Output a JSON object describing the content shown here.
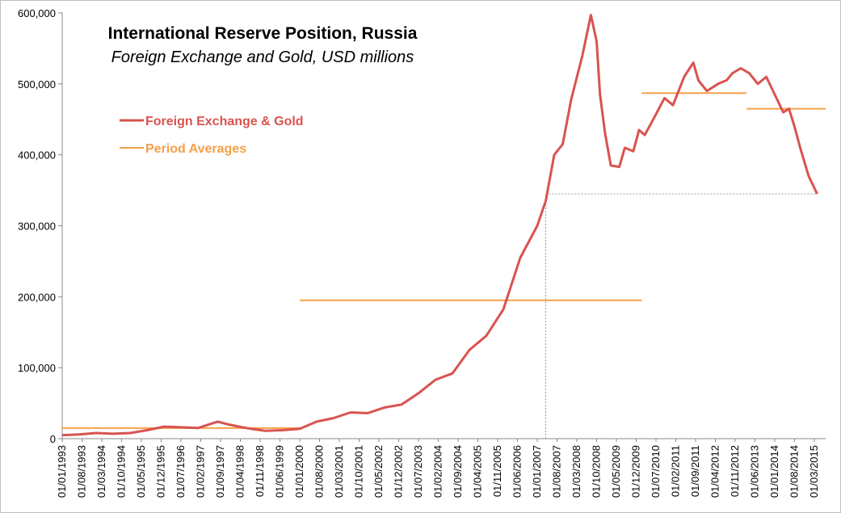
{
  "chart_data": {
    "type": "line",
    "title": "International Reserve Position, Russia",
    "subtitle": "Foreign Exchange and Gold, USD millions",
    "xlabel": "",
    "ylabel": "",
    "ylim": [
      0,
      600000
    ],
    "yticks": [
      "0",
      "100,000",
      "200,000",
      "300,000",
      "400,000",
      "500,000",
      "600,000"
    ],
    "ytick_values": [
      0,
      100000,
      200000,
      300000,
      400000,
      500000,
      600000
    ],
    "x_tick_labels": [
      "01/01/1993",
      "01/08/1993",
      "01/03/1994",
      "01/10/1994",
      "01/05/1995",
      "01/12/1995",
      "01/07/1996",
      "01/02/1997",
      "01/09/1997",
      "01/04/1998",
      "01/11/1998",
      "01/06/1999",
      "01/01/2000",
      "01/08/2000",
      "01/03/2001",
      "01/10/2001",
      "01/05/2002",
      "01/12/2002",
      "01/07/2003",
      "01/02/2004",
      "01/09/2004",
      "01/04/2005",
      "01/11/2005",
      "01/06/2006",
      "01/01/2007",
      "01/08/2007",
      "01/03/2008",
      "01/10/2008",
      "01/05/2009",
      "01/12/2009",
      "01/07/2010",
      "01/02/2011",
      "01/09/2011",
      "01/04/2012",
      "01/11/2012",
      "01/06/2013",
      "01/01/2014",
      "01/08/2014",
      "01/03/2015"
    ],
    "x_start_year": 1993.0,
    "x_end_year": 2015.5,
    "series": [
      {
        "name": "Foreign Exchange & Gold",
        "color": "#d9534f",
        "points": [
          [
            1993.0,
            5000
          ],
          [
            1993.5,
            6000
          ],
          [
            1994.0,
            8000
          ],
          [
            1994.5,
            7000
          ],
          [
            1995.0,
            8000
          ],
          [
            1995.5,
            12000
          ],
          [
            1996.0,
            17000
          ],
          [
            1996.5,
            16000
          ],
          [
            1997.0,
            15000
          ],
          [
            1997.58,
            24000
          ],
          [
            1997.9,
            20000
          ],
          [
            1998.3,
            16000
          ],
          [
            1998.7,
            13000
          ],
          [
            1999.0,
            11000
          ],
          [
            1999.5,
            12000
          ],
          [
            2000.0,
            14000
          ],
          [
            2000.5,
            24000
          ],
          [
            2001.0,
            29000
          ],
          [
            2001.5,
            37000
          ],
          [
            2002.0,
            36000
          ],
          [
            2002.5,
            44000
          ],
          [
            2003.0,
            48000
          ],
          [
            2003.5,
            64000
          ],
          [
            2004.0,
            83000
          ],
          [
            2004.5,
            92000
          ],
          [
            2005.0,
            125000
          ],
          [
            2005.5,
            145000
          ],
          [
            2006.0,
            182000
          ],
          [
            2006.5,
            255000
          ],
          [
            2007.0,
            300000
          ],
          [
            2007.25,
            335000
          ],
          [
            2007.5,
            400000
          ],
          [
            2007.75,
            415000
          ],
          [
            2008.0,
            478000
          ],
          [
            2008.33,
            540000
          ],
          [
            2008.58,
            597000
          ],
          [
            2008.75,
            560000
          ],
          [
            2008.85,
            485000
          ],
          [
            2009.0,
            430000
          ],
          [
            2009.17,
            385000
          ],
          [
            2009.42,
            383000
          ],
          [
            2009.58,
            410000
          ],
          [
            2009.83,
            405000
          ],
          [
            2010.0,
            435000
          ],
          [
            2010.17,
            428000
          ],
          [
            2010.42,
            450000
          ],
          [
            2010.75,
            480000
          ],
          [
            2011.0,
            470000
          ],
          [
            2011.33,
            510000
          ],
          [
            2011.6,
            530000
          ],
          [
            2011.75,
            505000
          ],
          [
            2012.0,
            490000
          ],
          [
            2012.33,
            500000
          ],
          [
            2012.58,
            505000
          ],
          [
            2012.75,
            515000
          ],
          [
            2013.0,
            522000
          ],
          [
            2013.25,
            515000
          ],
          [
            2013.5,
            500000
          ],
          [
            2013.75,
            510000
          ],
          [
            2014.0,
            485000
          ],
          [
            2014.25,
            460000
          ],
          [
            2014.42,
            465000
          ],
          [
            2014.58,
            440000
          ],
          [
            2014.75,
            410000
          ],
          [
            2015.0,
            370000
          ],
          [
            2015.25,
            345000
          ]
        ]
      }
    ],
    "period_averages": {
      "name": "Period Averages",
      "color": "#f5a04a",
      "segments": [
        {
          "x0": 1993.0,
          "x1": 2000.0,
          "y": 15000
        },
        {
          "x0": 2000.0,
          "x1": 2010.08,
          "y": 195000
        },
        {
          "x0": 2010.08,
          "x1": 2013.17,
          "y": 487000
        },
        {
          "x0": 2013.17,
          "x1": 2015.5,
          "y": 465000
        }
      ]
    },
    "reference_lines": {
      "horizontal": {
        "x0": 2007.25,
        "x1": 2015.25,
        "y": 345000
      },
      "vertical": {
        "x": 2007.25,
        "y0": 0,
        "y1": 345000
      }
    },
    "legend": [
      {
        "label": "Foreign Exchange & Gold",
        "color": "#d9534f"
      },
      {
        "label": "Period Averages",
        "color": "#f5a04a"
      }
    ]
  }
}
